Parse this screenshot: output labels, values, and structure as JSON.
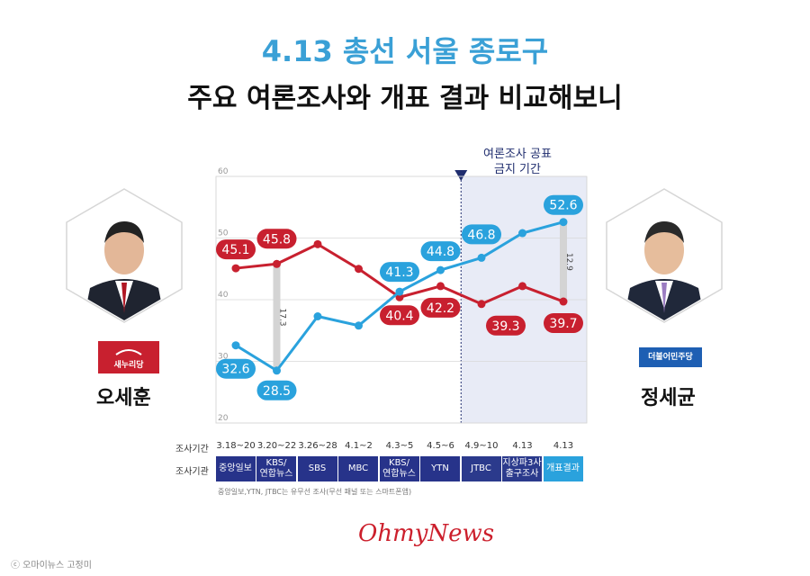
{
  "title": "4.13 총선 서울 종로구",
  "subtitle": "주요 여론조사와 개표 결과 비교해보니",
  "blackout": {
    "label_line1": "여론조사 공표",
    "label_line2": "금지 기간"
  },
  "candidates": {
    "left": {
      "name": "오세훈",
      "party": "새누리당",
      "color": "#c8202f"
    },
    "right": {
      "name": "정세균",
      "party": "더불어민주당",
      "color": "#2aa2dd"
    }
  },
  "row_labels": {
    "period": "조사기간",
    "org": "조사기관"
  },
  "footnote": "중앙일보,YTN, JTBC는 유무선 조사(무선 패널 또는 스마트폰앱)",
  "logo": "OhmyNews",
  "credit": "ⓒ 오마이뉴스 고정미",
  "gap_labels": [
    "17.3",
    "12.9"
  ],
  "chart_data": {
    "type": "line",
    "ylim": [
      20,
      60
    ],
    "yticks": [
      20,
      30,
      40,
      50,
      60
    ],
    "categories": [
      "3.18~20",
      "3.20~22",
      "3.26~28",
      "4.1~2",
      "4.3~5",
      "4.5~6",
      "4.9~10",
      "4.13",
      "4.13"
    ],
    "organizations": [
      "중앙일보",
      "KBS/\n연합뉴스",
      "SBS",
      "MBC",
      "KBS/\n연합뉴스",
      "YTN",
      "JTBC",
      "지상파3사\n출구조사",
      "개표결과"
    ],
    "series": [
      {
        "name": "오세훈",
        "color": "#c8202f",
        "values": [
          45.1,
          45.8,
          49.0,
          45.0,
          40.4,
          42.2,
          39.3,
          42.2,
          39.7
        ],
        "labels": [
          "45.1",
          "45.8",
          null,
          null,
          "40.4",
          "42.2",
          "39.3",
          null,
          "39.7"
        ]
      },
      {
        "name": "정세균",
        "color": "#2aa2dd",
        "values": [
          32.6,
          28.5,
          37.3,
          35.8,
          41.3,
          44.8,
          46.8,
          50.8,
          52.6
        ],
        "labels": [
          "32.6",
          "28.5",
          null,
          null,
          "41.3",
          "44.8",
          "46.8",
          null,
          "52.6"
        ]
      }
    ]
  }
}
